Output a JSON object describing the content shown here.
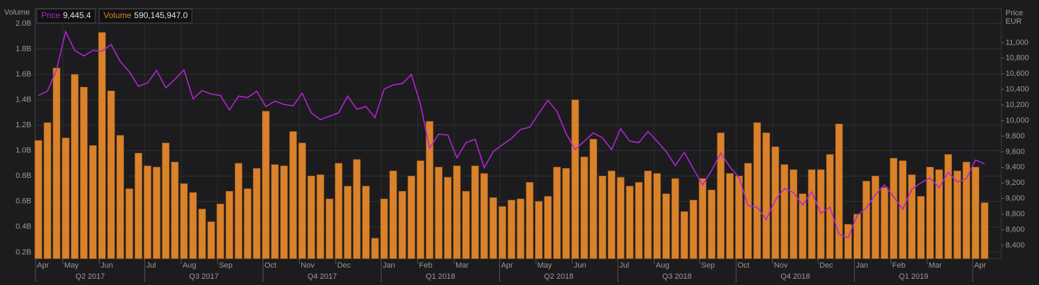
{
  "chart_data": {
    "type": "bar-line",
    "y_label": "Volume",
    "y2_label": "Price",
    "y2_unit": "EUR",
    "categories": [
      "Apr",
      null,
      null,
      "May",
      null,
      null,
      null,
      "Jun",
      null,
      null,
      null,
      null,
      "Jul",
      null,
      null,
      null,
      "Aug",
      null,
      null,
      null,
      "Sep",
      null,
      null,
      null,
      null,
      "Oct",
      null,
      null,
      null,
      "Nov",
      null,
      null,
      null,
      "Dec",
      null,
      null,
      null,
      null,
      "Jan",
      null,
      null,
      null,
      "Feb",
      null,
      null,
      null,
      "Mar",
      null,
      null,
      null,
      null,
      "Apr",
      null,
      null,
      null,
      "May",
      null,
      null,
      null,
      "Jun",
      null,
      null,
      null,
      null,
      "Jul",
      null,
      null,
      null,
      "Aug",
      null,
      null,
      null,
      null,
      "Sep",
      null,
      null,
      null,
      "Oct",
      null,
      null,
      null,
      "Nov",
      null,
      null,
      null,
      null,
      "Dec",
      null,
      null,
      null,
      "Jan",
      null,
      null,
      null,
      "Feb",
      null,
      null,
      null,
      "Mar",
      null,
      null,
      null,
      null,
      "Apr",
      null
    ],
    "quarters": [
      "Q2 2017",
      "Q3 2017",
      "Q4 2017",
      "Q1 2018",
      "Q2 2018",
      "Q3 2018",
      "Q4 2018",
      "Q1 2019"
    ],
    "series": [
      {
        "name": "Volume",
        "color": "#d9822b",
        "axis": "y",
        "last_value_label": "590,145,947.0",
        "values": [
          1.08,
          1.22,
          1.65,
          1.1,
          1.6,
          1.5,
          1.04,
          1.93,
          1.47,
          1.12,
          0.7,
          0.98,
          0.88,
          0.87,
          1.06,
          0.91,
          0.74,
          0.67,
          0.54,
          0.44,
          0.58,
          0.68,
          0.9,
          0.7,
          0.86,
          1.31,
          0.89,
          0.88,
          1.15,
          1.06,
          0.8,
          0.81,
          0.62,
          0.9,
          0.72,
          0.93,
          0.72,
          0.31,
          0.62,
          0.84,
          0.68,
          0.8,
          0.92,
          1.23,
          0.87,
          0.79,
          0.88,
          0.68,
          0.88,
          0.82,
          0.63,
          0.56,
          0.61,
          0.62,
          0.75,
          0.6,
          0.64,
          0.87,
          0.86,
          1.4,
          0.95,
          1.09,
          0.8,
          0.84,
          0.79,
          0.72,
          0.75,
          0.84,
          0.82,
          0.66,
          0.78,
          0.52,
          0.61,
          0.78,
          0.69,
          1.14,
          0.82,
          0.8,
          0.9,
          1.22,
          1.14,
          1.03,
          0.89,
          0.85,
          0.66,
          0.85,
          0.85,
          0.97,
          1.21,
          0.42,
          0.5,
          0.76,
          0.8,
          0.71,
          0.94,
          0.92,
          0.81,
          0.64,
          0.87,
          0.85,
          0.97,
          0.84,
          0.91,
          0.87,
          0.59
        ]
      },
      {
        "name": "Price",
        "color": "#b424d4",
        "axis": "y2",
        "last_value_label": "9,445.4",
        "values": [
          10323,
          10377,
          10652,
          11142,
          10900,
          10830,
          10900,
          10890,
          10975,
          10760,
          10626,
          10440,
          10484,
          10644,
          10420,
          10528,
          10652,
          10280,
          10385,
          10340,
          10323,
          10136,
          10314,
          10296,
          10377,
          10180,
          10250,
          10207,
          10190,
          10350,
          10100,
          10012,
          10056,
          10100,
          10314,
          10145,
          10180,
          10038,
          10403,
          10457,
          10475,
          10590,
          10207,
          9647,
          9825,
          9816,
          9522,
          9718,
          9762,
          9397,
          9602,
          9690,
          9771,
          9887,
          9914,
          10092,
          10261,
          10118,
          9834,
          9629,
          9736,
          9842,
          9780,
          9629,
          9896,
          9736,
          9718,
          9860,
          9736,
          9602,
          9424,
          9593,
          9379,
          9175,
          9362,
          9584,
          9406,
          9272,
          8907,
          8890,
          8730,
          8980,
          9130,
          9077,
          8917,
          9086,
          8810,
          8890,
          8542,
          8498,
          8783,
          8880,
          9050,
          9175,
          9024,
          8863,
          9122,
          9202,
          9264,
          9139,
          9335,
          9210,
          9255,
          9495,
          9445
        ]
      }
    ],
    "ylim": [
      0.15,
      2.12
    ],
    "yticks": [
      {
        "value": 0.2,
        "label": "0.2B"
      },
      {
        "value": 0.4,
        "label": "0.4B"
      },
      {
        "value": 0.6,
        "label": "0.6B"
      },
      {
        "value": 0.8,
        "label": "0.8B"
      },
      {
        "value": 1.0,
        "label": "1.0B"
      },
      {
        "value": 1.2,
        "label": "1.2B"
      },
      {
        "value": 1.4,
        "label": "1.4B"
      },
      {
        "value": 1.6,
        "label": "1.6B"
      },
      {
        "value": 1.8,
        "label": "1.8B"
      },
      {
        "value": 2.0,
        "label": "2.0B"
      }
    ],
    "y2lim": [
      8230,
      11440
    ],
    "y2ticks": [
      {
        "value": 8400,
        "label": "8,400"
      },
      {
        "value": 8600,
        "label": "8,600"
      },
      {
        "value": 8800,
        "label": "8,800"
      },
      {
        "value": 9000,
        "label": "9,000"
      },
      {
        "value": 9200,
        "label": "9,200"
      },
      {
        "value": 9400,
        "label": "9,400"
      },
      {
        "value": 9600,
        "label": "9,600"
      },
      {
        "value": 9800,
        "label": "9,800"
      },
      {
        "value": 10000,
        "label": "10,000"
      },
      {
        "value": 10200,
        "label": "10,200"
      },
      {
        "value": 10400,
        "label": "10,400"
      },
      {
        "value": 10600,
        "label": "10,600"
      },
      {
        "value": 10800,
        "label": "10,800"
      },
      {
        "value": 11000,
        "label": "11,000"
      }
    ],
    "grid": true
  }
}
